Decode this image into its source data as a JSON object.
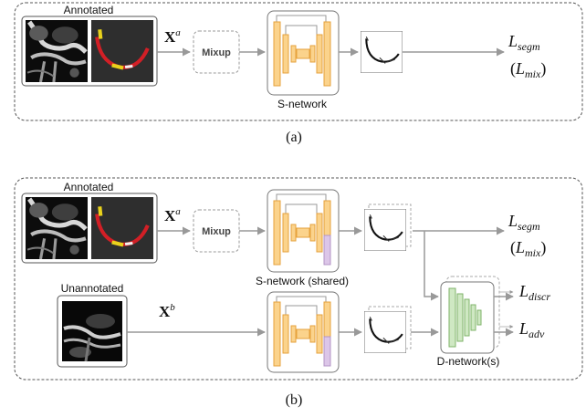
{
  "panel_a": {
    "caption": "(a)",
    "annotated_label": "Annotated",
    "input_symbol": "X",
    "input_superscript": "a",
    "mixup_label": "Mixup",
    "snetwork_label": "S-network",
    "loss_main": "L",
    "loss_main_sub": "segm",
    "loss_alt": "L",
    "loss_alt_sub": "mix"
  },
  "panel_b": {
    "caption": "(b)",
    "annotated_label": "Annotated",
    "unannotated_label": "Unannotated",
    "input_a_symbol": "X",
    "input_a_superscript": "a",
    "input_b_symbol": "X",
    "input_b_superscript": "b",
    "mixup_label": "Mixup",
    "snetwork_label": "S-network (shared)",
    "dnetwork_label": "D-network(s)",
    "loss_segm": "L",
    "loss_segm_sub": "segm",
    "loss_mix": "L",
    "loss_mix_sub": "mix",
    "loss_discr": "L",
    "loss_discr_sub": "discr",
    "loss_adv": "L",
    "loss_adv_sub": "adv"
  },
  "colors": {
    "encoder_fill": "#fbd38c",
    "encoder_stroke": "#e6a23c",
    "head_fill": "#dcc6e8",
    "dnet_fill": "#cfe8c3",
    "dnet_stroke": "#7fb36a",
    "arrow": "#999999",
    "mask_red": "#d21f26",
    "mask_yellow": "#e9d21c"
  }
}
